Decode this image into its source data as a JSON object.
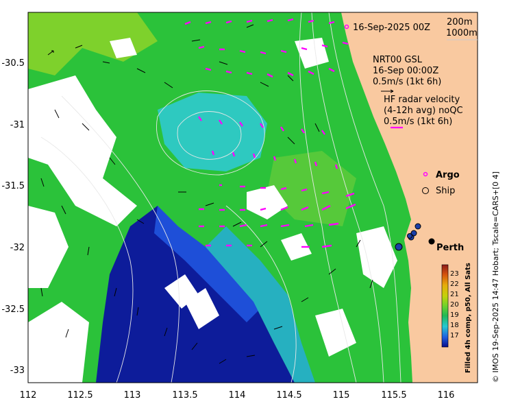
{
  "header": {
    "date_label": "16-Sep-2025 00Z",
    "isobath_200": "200m",
    "isobath_1000": "1000m"
  },
  "legend": {
    "model_name": "NRT00 GSL",
    "model_time": "16-Sep 00:00Z",
    "model_scale": "0.5m/s (1kt 6h)",
    "radar_line1": "HF radar velocity",
    "radar_line2": "(4-12h avg) noQC",
    "radar_scale": "0.5m/s (1kt 6h)",
    "argo": "Argo",
    "ship": "Ship"
  },
  "places": {
    "perth": "Perth"
  },
  "axes": {
    "x_ticks": [
      "112",
      "112.5",
      "113",
      "113.5",
      "114",
      "114.5",
      "115",
      "115.5",
      "116"
    ],
    "y_ticks": [
      "-30.5",
      "-31",
      "-31.5",
      "-32",
      "-32.5",
      "-33"
    ],
    "x_range": [
      112,
      116.3
    ],
    "y_range": [
      -33.1,
      -29.95
    ]
  },
  "colorbar": {
    "title": "Filled 4h comp, p50, All Sats",
    "ticks": [
      "23",
      "22",
      "21",
      "20",
      "19",
      "18",
      "17"
    ],
    "colors": [
      "#8b1a1a",
      "#d6530c",
      "#e6ad0a",
      "#c4d20a",
      "#6fd22b",
      "#22b855",
      "#27c8d2",
      "#1e5fe0",
      "#0b0d8a"
    ]
  },
  "credit": "© IMOS 19-Sep-2025 14:47 Hobart; Tscale=CARS+[0 4]",
  "colors": {
    "land": "#f9c9a0",
    "cloud": "#ffffff",
    "radar_arrow": "#ff00ff",
    "model_arrow": "#000000",
    "contour": "#e8e8e8"
  }
}
